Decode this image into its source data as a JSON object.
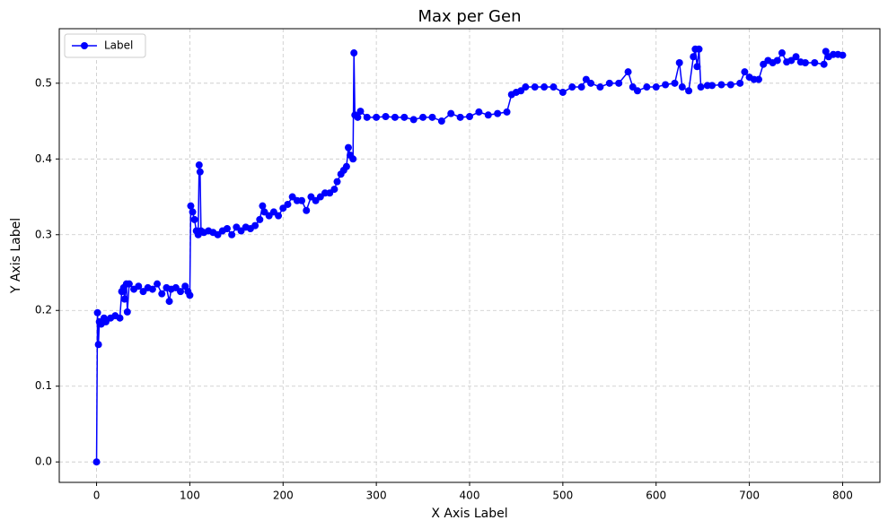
{
  "chart_data": {
    "type": "line",
    "title": "Max per Gen",
    "xlabel": "X Axis Label",
    "ylabel": "Y Axis Label",
    "x": [
      0,
      1,
      2,
      3,
      5,
      8,
      10,
      15,
      20,
      25,
      27,
      29,
      30,
      32,
      33,
      35,
      40,
      45,
      50,
      55,
      60,
      65,
      70,
      75,
      78,
      80,
      85,
      90,
      95,
      98,
      100,
      101,
      103,
      105,
      107,
      109,
      110,
      111,
      112,
      115,
      120,
      125,
      130,
      135,
      140,
      145,
      150,
      155,
      160,
      165,
      170,
      175,
      178,
      180,
      185,
      190,
      195,
      200,
      205,
      210,
      215,
      220,
      225,
      230,
      235,
      240,
      245,
      250,
      255,
      258,
      262,
      265,
      268,
      270,
      272,
      275,
      276,
      277,
      280,
      283,
      290,
      300,
      310,
      320,
      330,
      340,
      350,
      360,
      370,
      380,
      390,
      400,
      410,
      420,
      430,
      440,
      445,
      450,
      455,
      460,
      470,
      480,
      490,
      500,
      510,
      520,
      525,
      530,
      540,
      550,
      560,
      570,
      575,
      580,
      590,
      600,
      610,
      620,
      625,
      628,
      635,
      640,
      642,
      644,
      646,
      648,
      655,
      660,
      670,
      680,
      690,
      695,
      700,
      705,
      710,
      715,
      720,
      725,
      730,
      735,
      740,
      745,
      750,
      755,
      760,
      770,
      780,
      782,
      785,
      790,
      795,
      800
    ],
    "series": [
      {
        "name": "Label",
        "color": "#0000ff",
        "values": [
          0.0,
          0.197,
          0.155,
          0.185,
          0.182,
          0.19,
          0.185,
          0.19,
          0.193,
          0.19,
          0.225,
          0.23,
          0.215,
          0.235,
          0.198,
          0.235,
          0.228,
          0.232,
          0.225,
          0.23,
          0.228,
          0.235,
          0.222,
          0.23,
          0.212,
          0.228,
          0.23,
          0.225,
          0.232,
          0.225,
          0.22,
          0.338,
          0.33,
          0.32,
          0.305,
          0.3,
          0.392,
          0.383,
          0.305,
          0.303,
          0.305,
          0.303,
          0.3,
          0.305,
          0.308,
          0.3,
          0.31,
          0.305,
          0.31,
          0.308,
          0.312,
          0.32,
          0.338,
          0.33,
          0.325,
          0.33,
          0.325,
          0.335,
          0.34,
          0.35,
          0.345,
          0.345,
          0.332,
          0.35,
          0.345,
          0.35,
          0.355,
          0.355,
          0.36,
          0.37,
          0.38,
          0.385,
          0.39,
          0.415,
          0.405,
          0.4,
          0.54,
          0.458,
          0.455,
          0.463,
          0.455,
          0.455,
          0.456,
          0.455,
          0.455,
          0.452,
          0.455,
          0.455,
          0.45,
          0.46,
          0.455,
          0.456,
          0.462,
          0.458,
          0.46,
          0.462,
          0.485,
          0.488,
          0.49,
          0.495,
          0.495,
          0.495,
          0.495,
          0.488,
          0.495,
          0.495,
          0.505,
          0.5,
          0.495,
          0.5,
          0.5,
          0.515,
          0.495,
          0.49,
          0.495,
          0.495,
          0.498,
          0.5,
          0.527,
          0.495,
          0.49,
          0.535,
          0.545,
          0.522,
          0.545,
          0.495,
          0.497,
          0.497,
          0.498,
          0.498,
          0.5,
          0.515,
          0.508,
          0.505,
          0.505,
          0.525,
          0.53,
          0.527,
          0.53,
          0.54,
          0.528,
          0.53,
          0.535,
          0.528,
          0.527,
          0.527,
          0.525,
          0.542,
          0.535,
          0.538,
          0.538,
          0.537
        ]
      }
    ],
    "xlim": [
      -40,
      840
    ],
    "xticks": [
      0,
      100,
      200,
      300,
      400,
      500,
      600,
      700,
      800
    ],
    "ylim": [
      -0.027,
      0.572
    ],
    "yticks": [
      0.0,
      0.1,
      0.2,
      0.3,
      0.4,
      0.5
    ],
    "grid": true,
    "legend": "upper left"
  }
}
